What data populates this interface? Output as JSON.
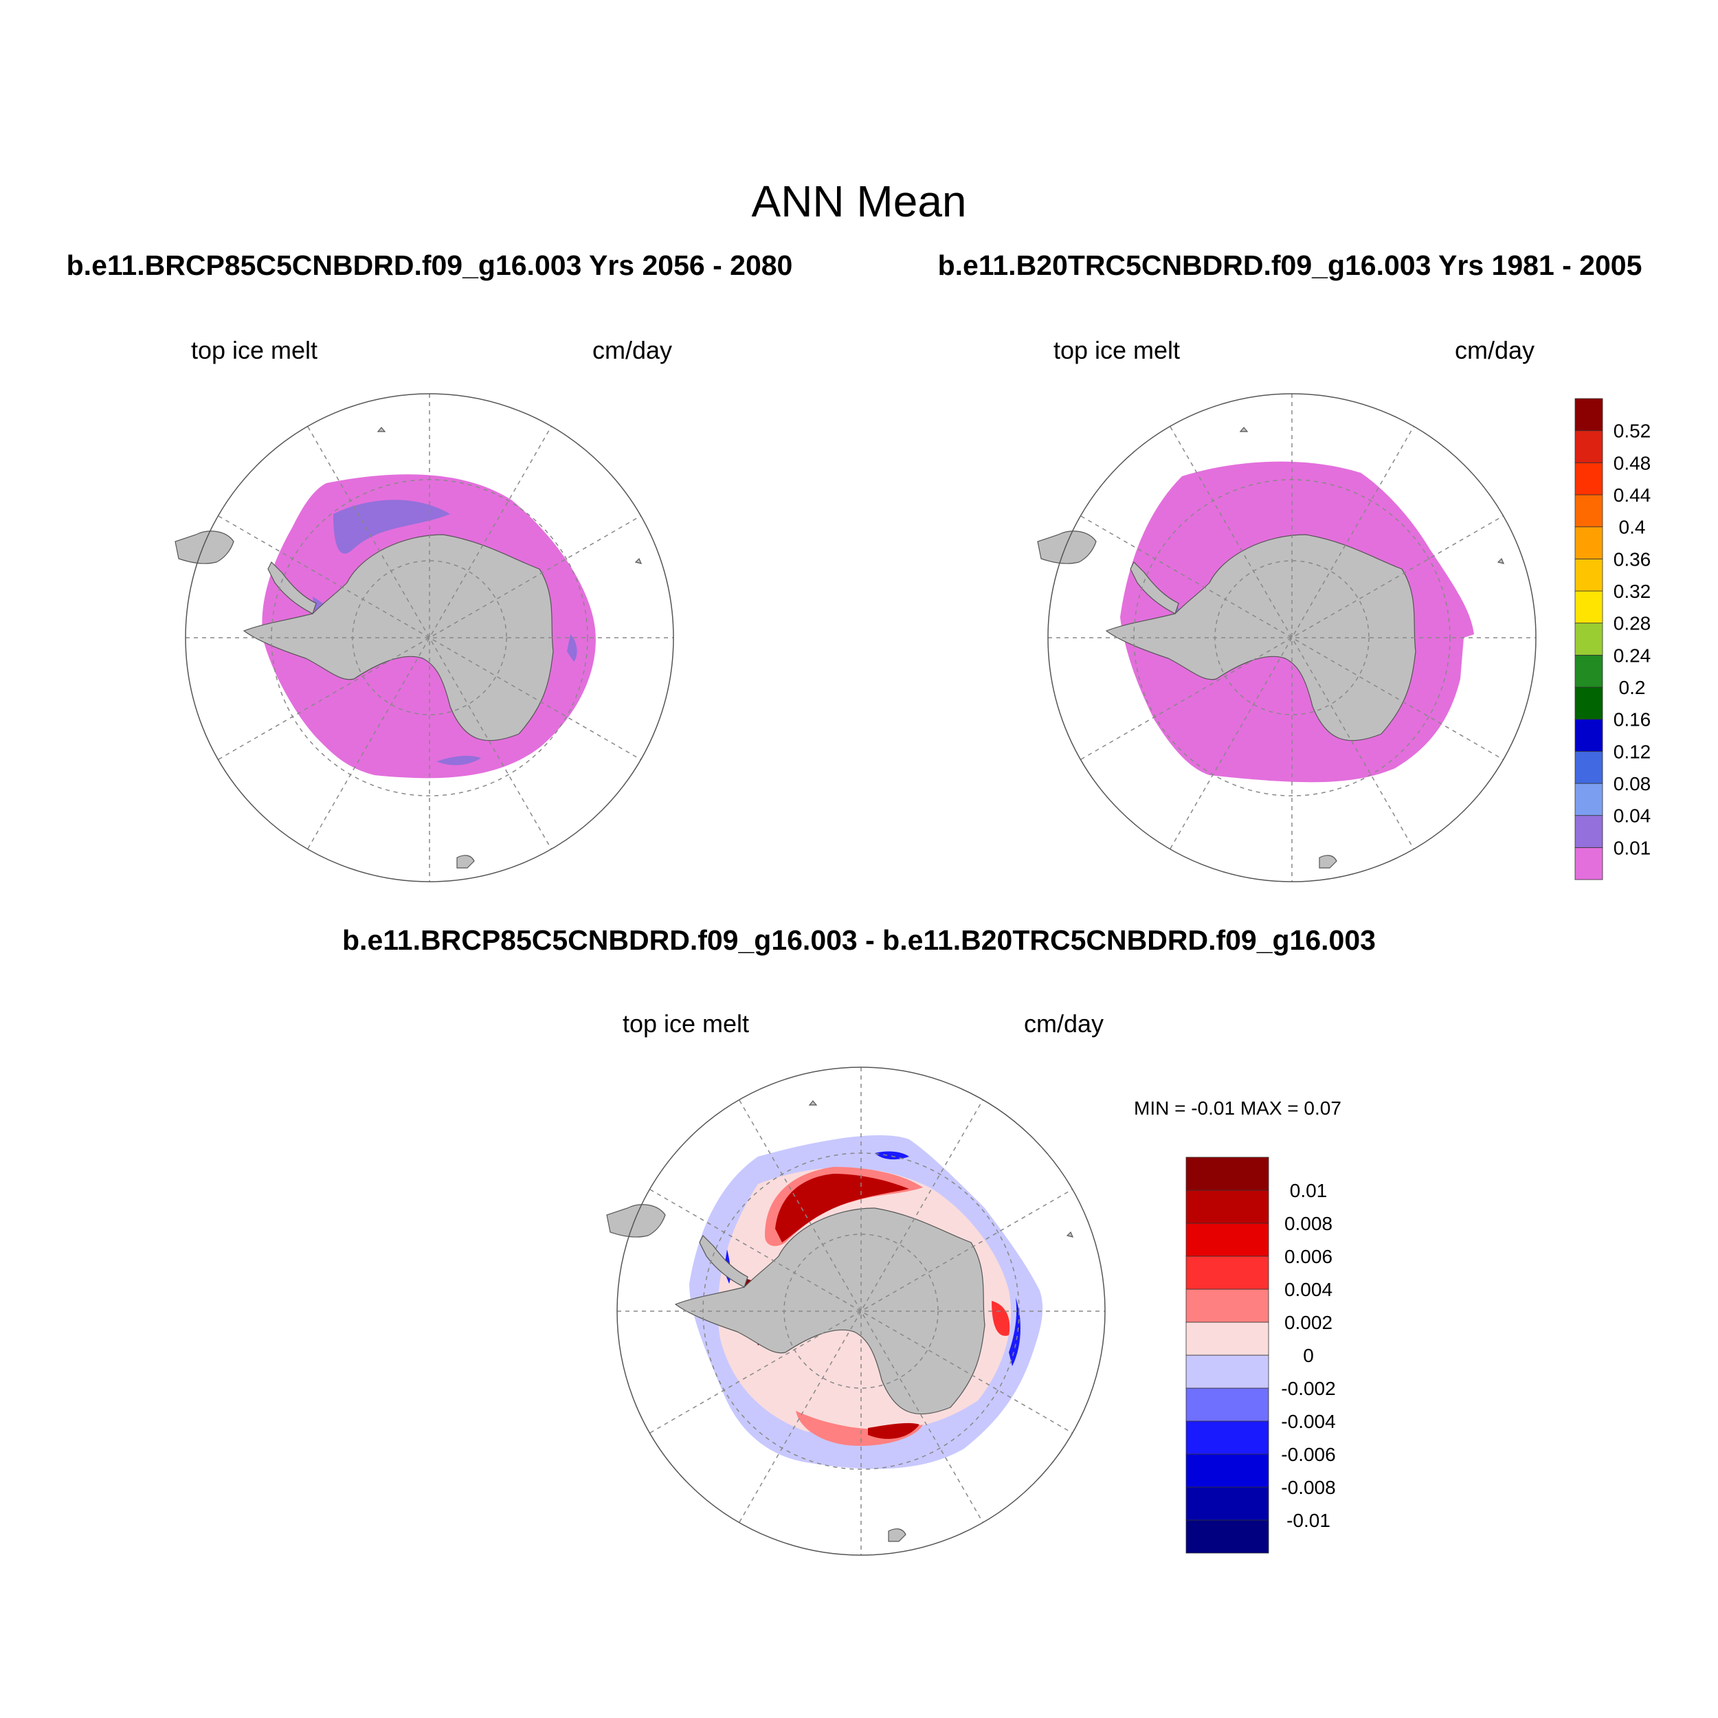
{
  "title": "ANN Mean",
  "panels": [
    {
      "heading": "b.e11.BRCP85C5CNBDRD.f09_g16.003  Yrs 2056 - 2080",
      "field_label": "top ice melt",
      "units": "cm/day"
    },
    {
      "heading": "b.e11.B20TRC5CNBDRD.f09_g16.003  Yrs 1981 - 2005",
      "field_label": "top ice melt",
      "units": "cm/day"
    },
    {
      "heading": "b.e11.BRCP85C5CNBDRD.f09_g16.003 - b.e11.B20TRC5CNBDRD.f09_g16.003",
      "field_label": "top ice melt",
      "units": "cm/day",
      "stats": "MIN =  -0.01 MAX =   0.07"
    }
  ],
  "colorbar_top": {
    "colors": [
      "#e36fdc",
      "#9370db",
      "#7b9ef0",
      "#4169e1",
      "#0000cd",
      "#006400",
      "#228b22",
      "#9acd32",
      "#ffe400",
      "#ffc400",
      "#ffa000",
      "#ff6a00",
      "#ff3300",
      "#dd2211",
      "#8b0000"
    ],
    "labels": [
      "0.01",
      "0.04",
      "0.08",
      "0.12",
      "0.16",
      "0.2",
      "0.24",
      "0.28",
      "0.32",
      "0.36",
      "0.4",
      "0.44",
      "0.48",
      "0.52"
    ]
  },
  "colorbar_diff": {
    "colors": [
      "#000080",
      "#0000aa",
      "#0000dd",
      "#1a1aff",
      "#7070ff",
      "#c8c8ff",
      "#fadcdc",
      "#ff8080",
      "#ff3030",
      "#e60000",
      "#bb0000",
      "#8b0000"
    ],
    "labels": [
      "-0.01",
      "-0.008",
      "-0.006",
      "-0.004",
      "-0.002",
      "0",
      "0.002",
      "0.004",
      "0.006",
      "0.008",
      "0.01"
    ]
  }
}
